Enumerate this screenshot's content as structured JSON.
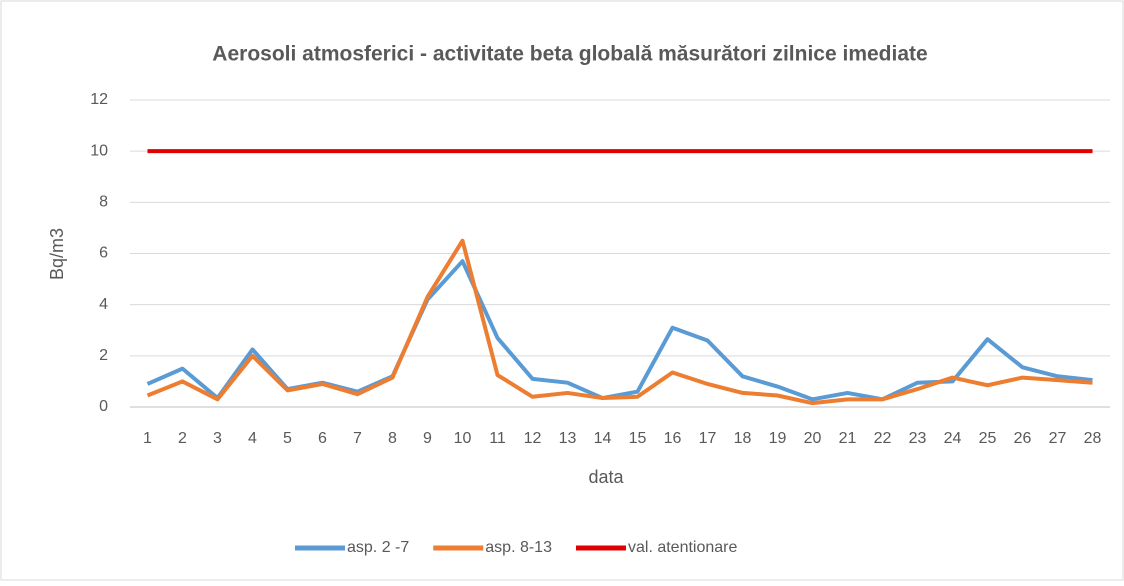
{
  "chart_data": {
    "type": "line",
    "title": "Aerosoli atmosferici - activitate beta globală măsurători zilnice imediate",
    "x_label": "data",
    "y_label": "Bq/m3",
    "categories": [
      "1",
      "2",
      "3",
      "4",
      "5",
      "6",
      "7",
      "8",
      "9",
      "10",
      "11",
      "12",
      "13",
      "14",
      "15",
      "16",
      "17",
      "18",
      "19",
      "20",
      "21",
      "22",
      "23",
      "24",
      "25",
      "26",
      "27",
      "28"
    ],
    "series": [
      {
        "name": "asp. 2 -7",
        "color": "#5b9bd5",
        "values": [
          0.9,
          1.5,
          0.35,
          2.25,
          0.7,
          0.95,
          0.6,
          1.2,
          4.2,
          5.7,
          2.7,
          1.1,
          0.95,
          0.35,
          0.6,
          3.1,
          2.6,
          1.2,
          0.8,
          0.3,
          0.55,
          0.3,
          0.95,
          1.0,
          2.65,
          1.55,
          1.2,
          1.05
        ]
      },
      {
        "name": "asp. 8-13",
        "color": "#ed7d31",
        "values": [
          0.45,
          1.0,
          0.3,
          2.0,
          0.65,
          0.9,
          0.5,
          1.15,
          4.3,
          6.5,
          1.25,
          0.4,
          0.55,
          0.35,
          0.4,
          1.35,
          0.9,
          0.55,
          0.45,
          0.15,
          0.3,
          0.3,
          0.7,
          1.15,
          0.85,
          1.15,
          1.05,
          0.95
        ]
      },
      {
        "name": "val. atentionare",
        "color": "#e00000",
        "values": [
          10,
          10,
          10,
          10,
          10,
          10,
          10,
          10,
          10,
          10,
          10,
          10,
          10,
          10,
          10,
          10,
          10,
          10,
          10,
          10,
          10,
          10,
          10,
          10,
          10,
          10,
          10,
          10
        ]
      }
    ],
    "ylim": [
      0,
      12
    ],
    "yticks": [
      0,
      2,
      4,
      6,
      8,
      10,
      12
    ],
    "grid": true,
    "legend": "bottom"
  }
}
